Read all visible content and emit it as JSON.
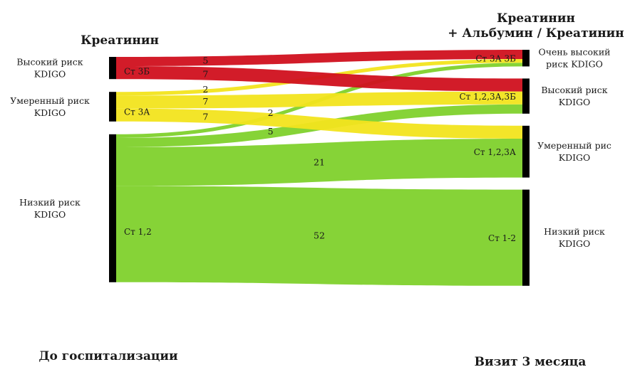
{
  "chart_data": {
    "type": "sankey",
    "left_header": "Креатинин",
    "right_header_line1": "Креатинин",
    "right_header_line2": "+ Альбумин / Креатинин",
    "left_footer": "До госпитализации",
    "right_footer": "Визит 3 месяца",
    "colors": {
      "red": "#d0101e",
      "yellow": "#f2e41d",
      "green": "#7fd12c",
      "bar": "#000000"
    },
    "left_nodes": [
      {
        "id": "L_high",
        "label_line1": "Высокий риск",
        "label_line2": "KDIGO",
        "stage": "Ст 3Б",
        "color": "red"
      },
      {
        "id": "L_mod",
        "label_line1": "Умеренный риск",
        "label_line2": "KDIGO",
        "stage": "Ст 3А",
        "color": "yellow"
      },
      {
        "id": "L_low",
        "label_line1": "Низкий риск",
        "label_line2": "KDIGO",
        "stage": "Ст 1,2",
        "color": "green"
      }
    ],
    "right_nodes": [
      {
        "id": "R_vhigh",
        "label_line1": "Очень высокий",
        "label_line2": "риск KDIGO",
        "stage": "Ст 3А 3Б"
      },
      {
        "id": "R_high",
        "label_line1": "Высокий риск",
        "label_line2": "KDIGO",
        "stage": "Ст 1,2,3А,3Б"
      },
      {
        "id": "R_mod",
        "label_line1": "Умеренный рис",
        "label_line2": "KDIGO",
        "stage": "Ст 1,2,3А"
      },
      {
        "id": "R_low",
        "label_line1": "Низкий риск",
        "label_line2": "KDIGO",
        "stage": "Ст 1-2"
      }
    ],
    "flows": [
      {
        "source": "L_high",
        "target": "R_vhigh",
        "value": 5,
        "label": "5"
      },
      {
        "source": "L_high",
        "target": "R_high",
        "value": 7,
        "label": "7"
      },
      {
        "source": "L_mod",
        "target": "R_vhigh",
        "value": 2,
        "label": "2"
      },
      {
        "source": "L_mod",
        "target": "R_high",
        "value": 7,
        "label": "7"
      },
      {
        "source": "L_mod",
        "target": "R_mod",
        "value": 7,
        "label": "7"
      },
      {
        "source": "L_low",
        "target": "R_vhigh",
        "value": 2,
        "label": "2"
      },
      {
        "source": "L_low",
        "target": "R_high",
        "value": 5,
        "label": "5"
      },
      {
        "source": "L_low",
        "target": "R_mod",
        "value": 21,
        "label": "21"
      },
      {
        "source": "L_low",
        "target": "R_low",
        "value": 52,
        "label": "52"
      }
    ]
  }
}
